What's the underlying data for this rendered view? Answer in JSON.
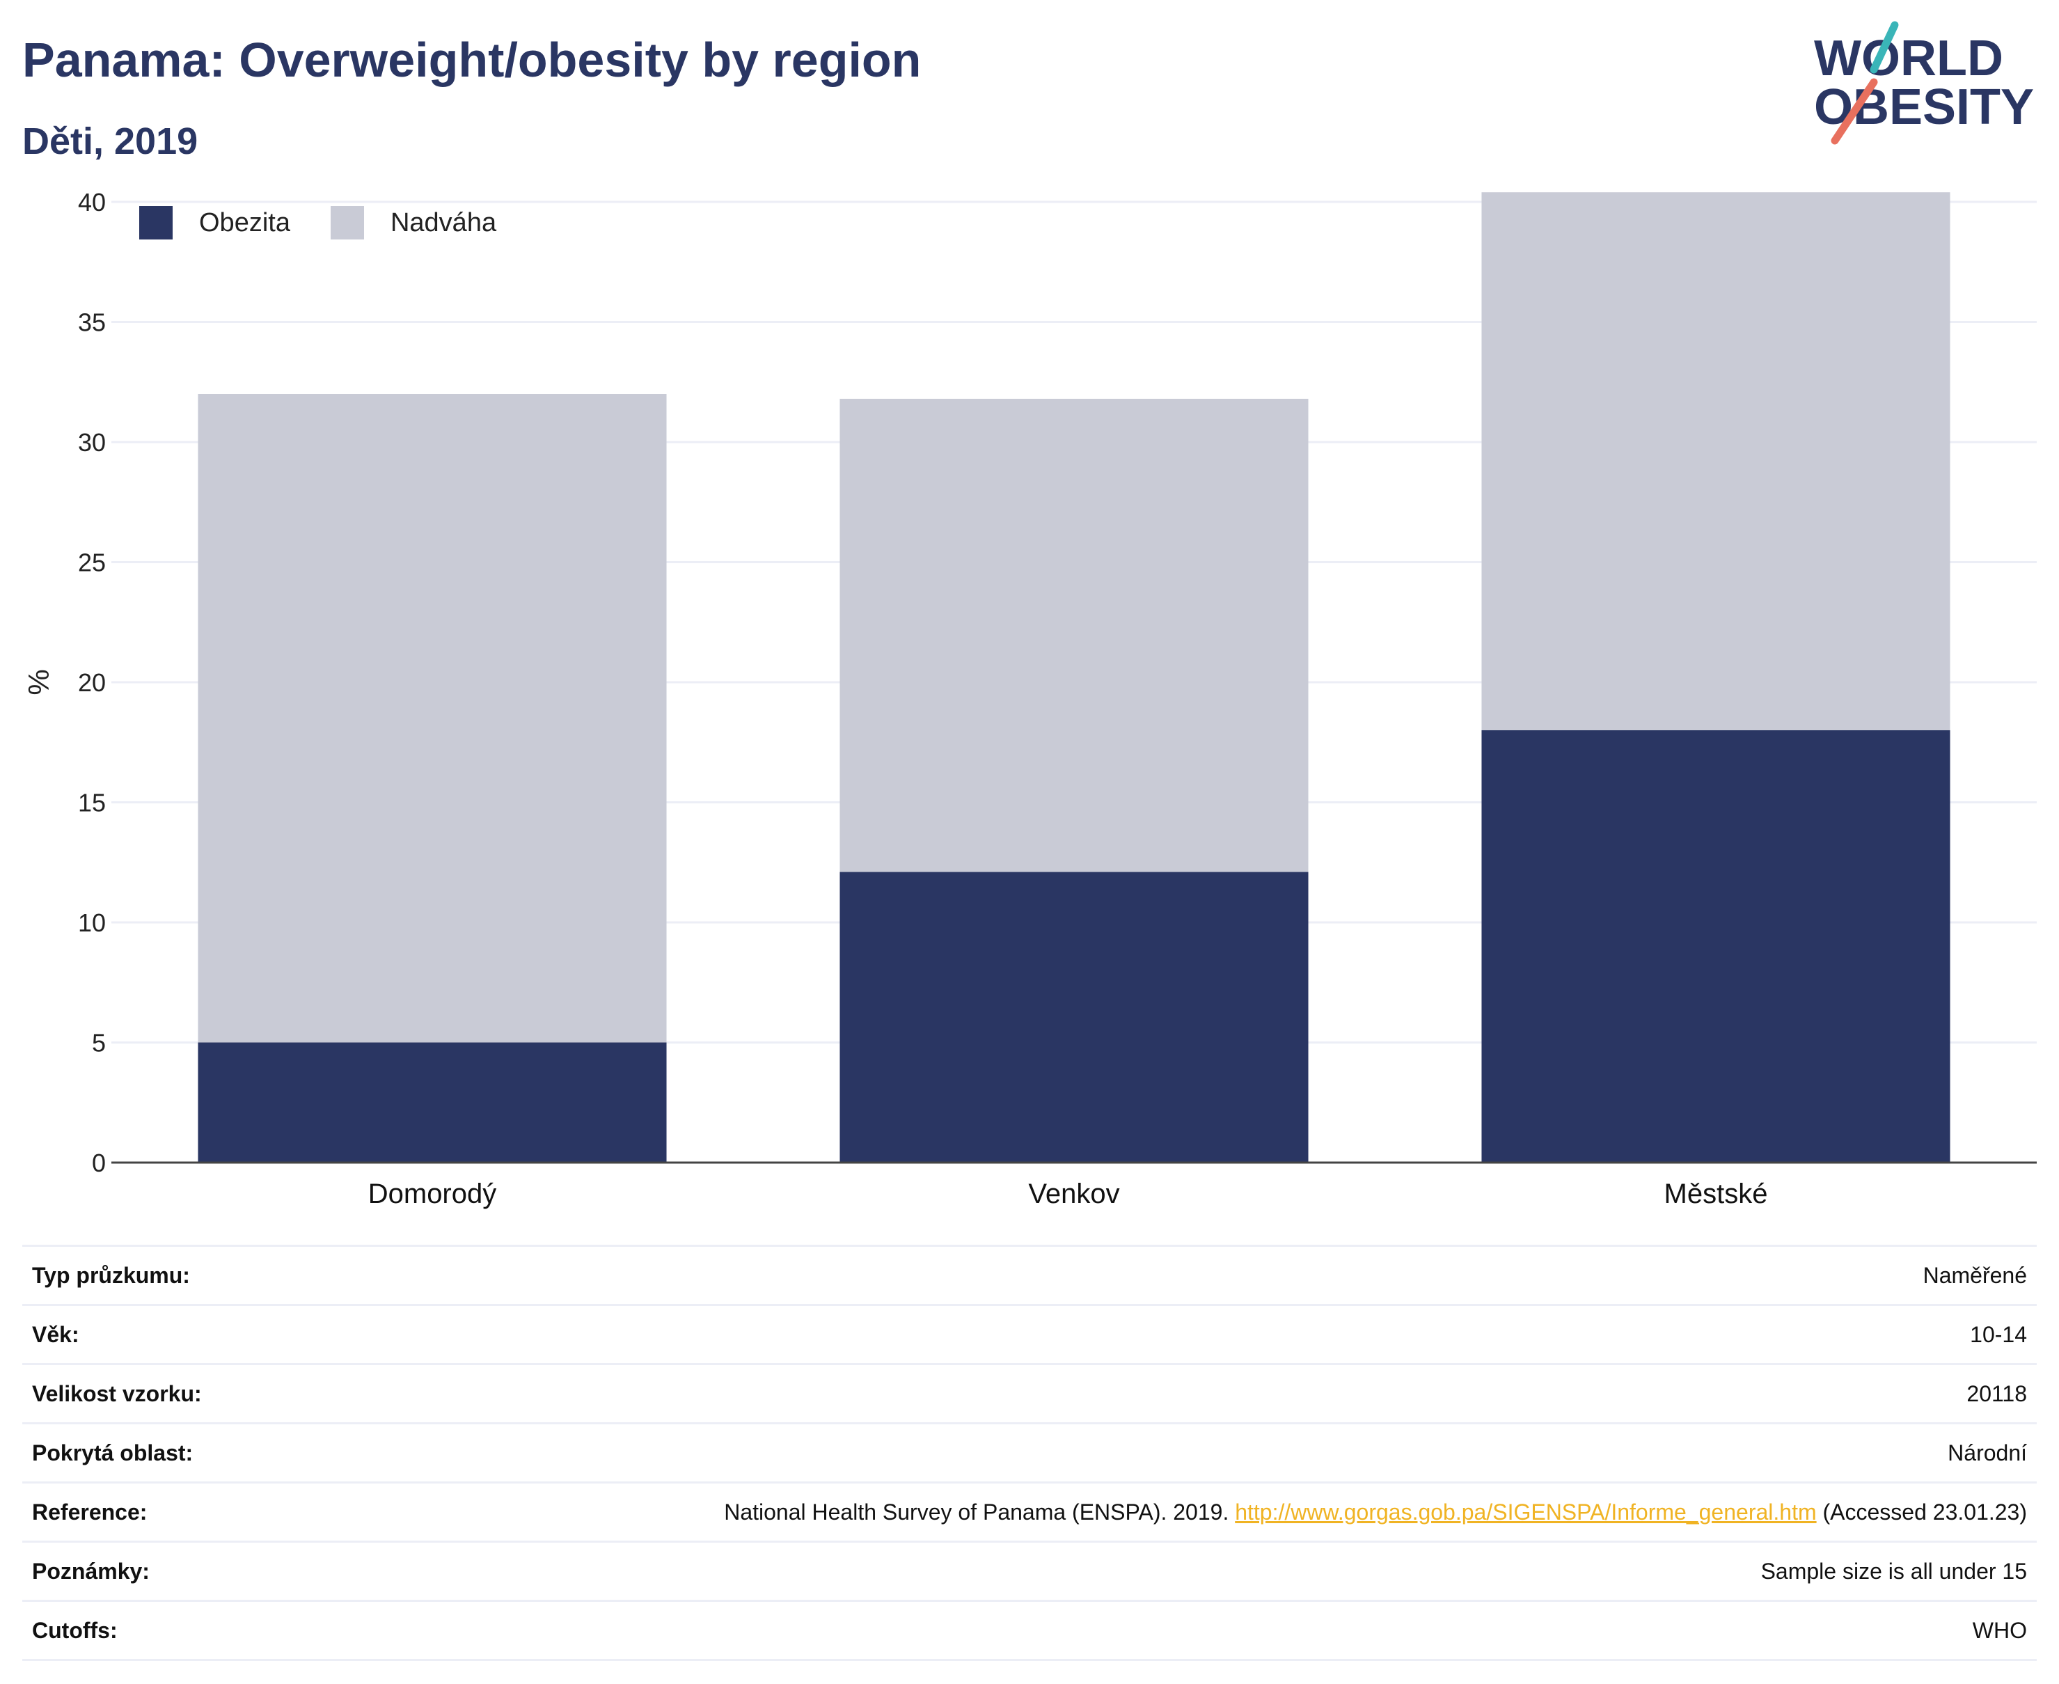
{
  "header": {
    "title": "Panama: Overweight/obesity by region",
    "subtitle": "Děti, 2019"
  },
  "logo": {
    "line1": "WORLD",
    "line2": "OBESITY",
    "colors": {
      "text": "#2a3663",
      "slash_top": "#3ab5b8",
      "slash_bottom": "#e8705e"
    }
  },
  "chart_data": {
    "type": "bar",
    "stacked": true,
    "categories": [
      "Domorodý",
      "Venkov",
      "Městské"
    ],
    "series": [
      {
        "name": "Obezita",
        "color": "#2a3663",
        "values": [
          5.0,
          12.1,
          18.0
        ]
      },
      {
        "name": "Nadváha",
        "color": "#c9cbd6",
        "values": [
          27.0,
          19.7,
          22.4
        ]
      }
    ],
    "ylabel": "%",
    "ylim": [
      0,
      40
    ],
    "yticks": [
      0,
      5,
      10,
      15,
      20,
      25,
      30,
      35,
      40
    ],
    "grid": true,
    "legend": "top-left"
  },
  "info_table": {
    "rows": [
      {
        "label": "Typ průzkumu:",
        "value": "Naměřené"
      },
      {
        "label": "Věk:",
        "value": "10-14"
      },
      {
        "label": "Velikost vzorku:",
        "value": "20118"
      },
      {
        "label": "Pokrytá oblast:",
        "value": "Národní"
      },
      {
        "label": "Reference:",
        "value": "National Health Survey of Panama (ENSPA). 2019.",
        "link": "http://www.gorgas.gob.pa/SIGENSPA/Informe_general.htm",
        "suffix": "(Accessed 23.01.23)"
      },
      {
        "label": "Poznámky:",
        "value": "Sample size is all under 15"
      },
      {
        "label": "Cutoffs:",
        "value": "WHO"
      }
    ]
  }
}
